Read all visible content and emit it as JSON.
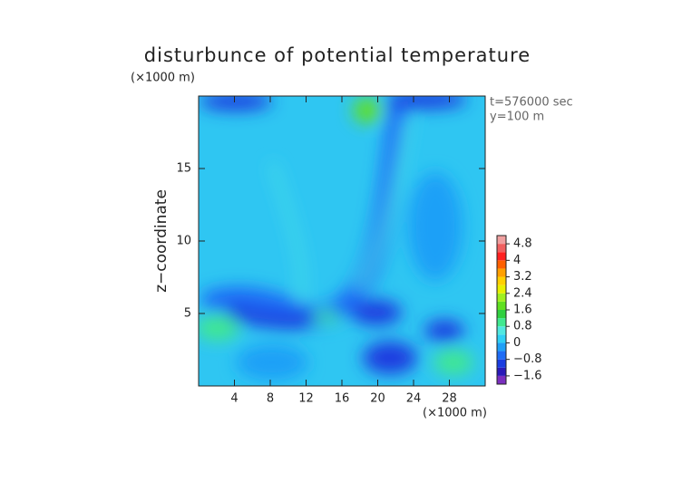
{
  "chart_data": {
    "type": "contour",
    "title": "disturbunce of potential temperature",
    "x_unit": "(×1000 m)",
    "y_unit": "(×1000 m)",
    "ylabel": "z−coordinate",
    "annotations": [
      "t=576000 sec",
      "y=100 m"
    ],
    "xlim": [
      0,
      32
    ],
    "xticks": [
      4,
      8,
      12,
      16,
      20,
      24,
      28
    ],
    "ylim": [
      0,
      20
    ],
    "yticks": [
      5,
      10,
      15
    ],
    "colorbar": {
      "lim": [
        -2,
        5.2
      ],
      "ticks": [
        {
          "value": 4.8,
          "label": "4.8"
        },
        4,
        3.2,
        2.4,
        1.6,
        0.8,
        0,
        {
          "value": -0.8,
          "label": "−0.8"
        },
        {
          "value": -1.6,
          "label": "−1.6"
        }
      ],
      "colors": [
        "#7a2fbf",
        "#2a1ab8",
        "#1a3de0",
        "#1e6cf5",
        "#1fa0f7",
        "#2fd0f5",
        "#50e8e0",
        "#40e890",
        "#30d040",
        "#60e020",
        "#a0f020",
        "#e8f000",
        "#ffd000",
        "#ffa000",
        "#ff6000",
        "#ff2020",
        "#f06060",
        "#f0a0a0"
      ]
    }
  }
}
